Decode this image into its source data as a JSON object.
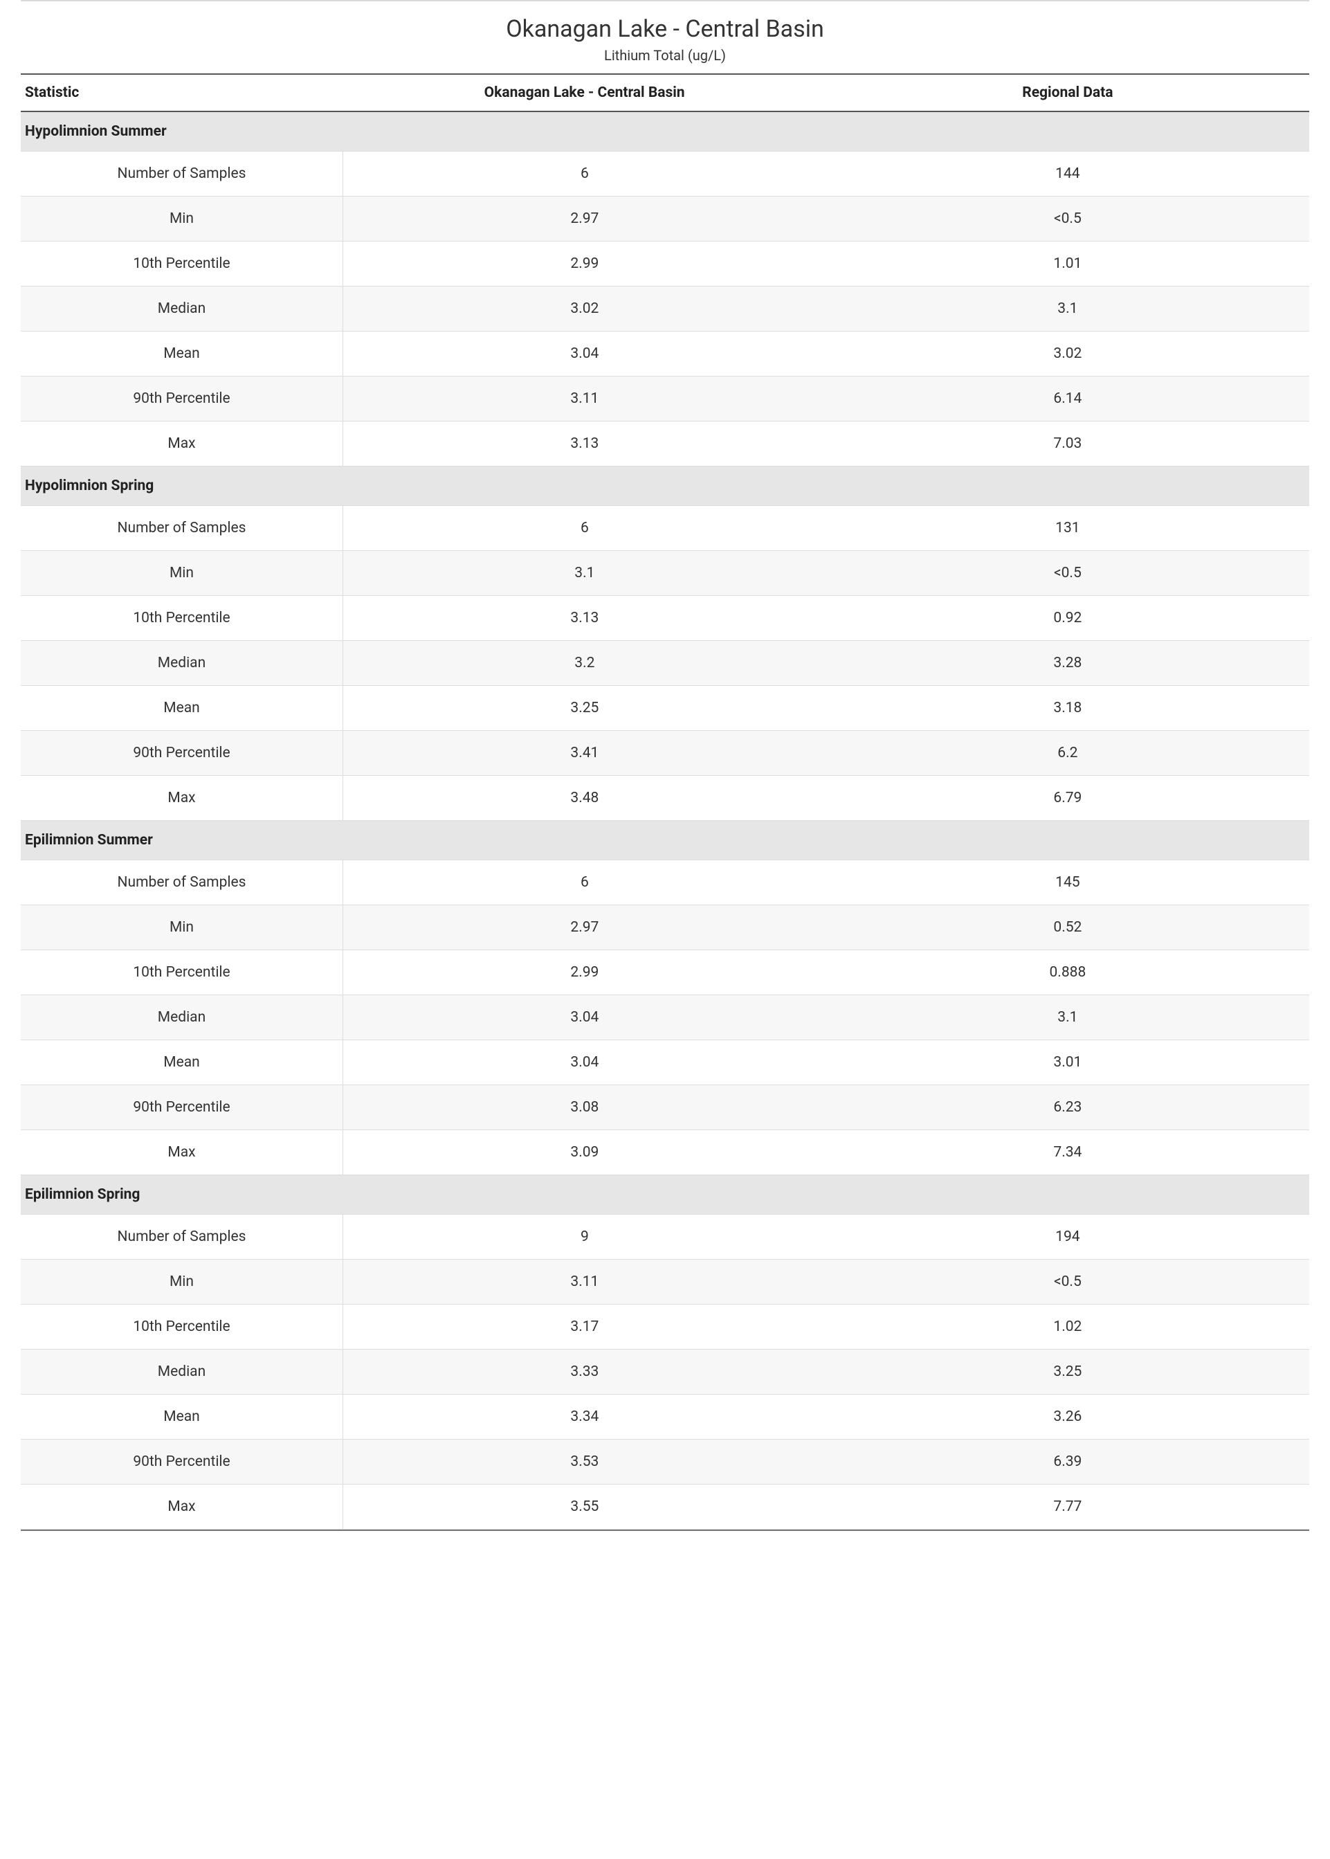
{
  "header": {
    "title": "Okanagan Lake - Central Basin",
    "subtitle": "Lithium Total (ug/L)"
  },
  "table": {
    "columns": [
      "Statistic",
      "Okanagan Lake - Central Basin",
      "Regional Data"
    ],
    "column_widths_pct": [
      25,
      37.5,
      37.5
    ],
    "header_text_align": [
      "left",
      "center",
      "center"
    ],
    "sections": [
      {
        "name": "Hypolimnion Summer",
        "rows": [
          {
            "stat": "Number of Samples",
            "site": "6",
            "regional": "144"
          },
          {
            "stat": "Min",
            "site": "2.97",
            "regional": "<0.5"
          },
          {
            "stat": "10th Percentile",
            "site": "2.99",
            "regional": "1.01"
          },
          {
            "stat": "Median",
            "site": "3.02",
            "regional": "3.1"
          },
          {
            "stat": "Mean",
            "site": "3.04",
            "regional": "3.02"
          },
          {
            "stat": "90th Percentile",
            "site": "3.11",
            "regional": "6.14"
          },
          {
            "stat": "Max",
            "site": "3.13",
            "regional": "7.03"
          }
        ]
      },
      {
        "name": "Hypolimnion Spring",
        "rows": [
          {
            "stat": "Number of Samples",
            "site": "6",
            "regional": "131"
          },
          {
            "stat": "Min",
            "site": "3.1",
            "regional": "<0.5"
          },
          {
            "stat": "10th Percentile",
            "site": "3.13",
            "regional": "0.92"
          },
          {
            "stat": "Median",
            "site": "3.2",
            "regional": "3.28"
          },
          {
            "stat": "Mean",
            "site": "3.25",
            "regional": "3.18"
          },
          {
            "stat": "90th Percentile",
            "site": "3.41",
            "regional": "6.2"
          },
          {
            "stat": "Max",
            "site": "3.48",
            "regional": "6.79"
          }
        ]
      },
      {
        "name": "Epilimnion Summer",
        "rows": [
          {
            "stat": "Number of Samples",
            "site": "6",
            "regional": "145"
          },
          {
            "stat": "Min",
            "site": "2.97",
            "regional": "0.52"
          },
          {
            "stat": "10th Percentile",
            "site": "2.99",
            "regional": "0.888"
          },
          {
            "stat": "Median",
            "site": "3.04",
            "regional": "3.1"
          },
          {
            "stat": "Mean",
            "site": "3.04",
            "regional": "3.01"
          },
          {
            "stat": "90th Percentile",
            "site": "3.08",
            "regional": "6.23"
          },
          {
            "stat": "Max",
            "site": "3.09",
            "regional": "7.34"
          }
        ]
      },
      {
        "name": "Epilimnion Spring",
        "rows": [
          {
            "stat": "Number of Samples",
            "site": "9",
            "regional": "194"
          },
          {
            "stat": "Min",
            "site": "3.11",
            "regional": "<0.5"
          },
          {
            "stat": "10th Percentile",
            "site": "3.17",
            "regional": "1.02"
          },
          {
            "stat": "Median",
            "site": "3.33",
            "regional": "3.25"
          },
          {
            "stat": "Mean",
            "site": "3.34",
            "regional": "3.26"
          },
          {
            "stat": "90th Percentile",
            "site": "3.53",
            "regional": "6.39"
          },
          {
            "stat": "Max",
            "site": "3.55",
            "regional": "7.77"
          }
        ]
      }
    ]
  },
  "style": {
    "font_family": "Segoe UI",
    "title_fontsize": 34,
    "subtitle_fontsize": 20,
    "header_fontsize": 21,
    "cell_fontsize": 21,
    "text_color": "#333333",
    "header_text_color": "#212121",
    "section_bg": "#e6e6e6",
    "row_alt_bg": "#f7f7f7",
    "row_bg": "#ffffff",
    "border_color": "#dddddd",
    "thick_border_color": "#555555",
    "top_rule_color": "#d9d9d9",
    "bottom_rule_color": "#777777"
  }
}
